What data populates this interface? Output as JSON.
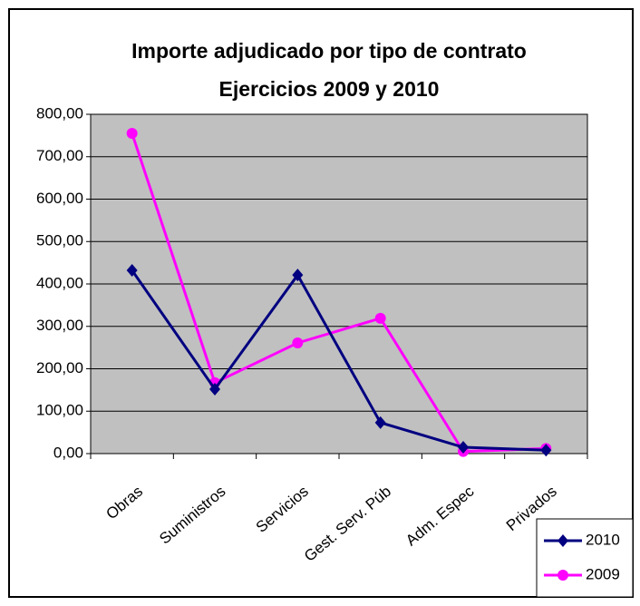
{
  "chart_data": {
    "type": "line",
    "title": "Importe adjudicado por tipo de contrato",
    "subtitle": "Ejercicios 2009 y 2010",
    "categories": [
      "Obras",
      "Suministros",
      "Servicios",
      "Gest. Serv. Púb",
      "Adm. Espec",
      "Privados"
    ],
    "series": [
      {
        "name": "2010",
        "color": "#000080",
        "marker": "diamond",
        "values": [
          432,
          152,
          421,
          73,
          15,
          8
        ]
      },
      {
        "name": "2009",
        "color": "#ff00ff",
        "marker": "circle",
        "values": [
          755,
          167,
          261,
          319,
          5,
          12
        ]
      }
    ],
    "ylim": [
      0,
      800
    ],
    "yticks": [
      {
        "value": 0,
        "label": "0,00"
      },
      {
        "value": 100,
        "label": "100,00"
      },
      {
        "value": 200,
        "label": "200,00"
      },
      {
        "value": 300,
        "label": "300,00"
      },
      {
        "value": 400,
        "label": "400,00"
      },
      {
        "value": 500,
        "label": "500,00"
      },
      {
        "value": 600,
        "label": "600,00"
      },
      {
        "value": 700,
        "label": "700,00"
      },
      {
        "value": 800,
        "label": "800,00"
      }
    ],
    "grid": true,
    "plot_background": "#c0c0c0",
    "legend": "lower right"
  }
}
